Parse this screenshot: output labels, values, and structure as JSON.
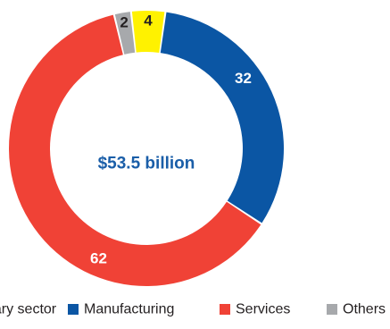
{
  "chart_data": {
    "type": "pie",
    "variant": "donut",
    "center_label": "$53.5 billion",
    "center_color": "#1a5ea8",
    "slices": [
      {
        "name": "Manufacturing",
        "value": 32,
        "label": "32",
        "color": "#0b56a4",
        "label_color": "#ffffff"
      },
      {
        "name": "Services",
        "value": 62,
        "label": "62",
        "color": "#f04236",
        "label_color": "#ffffff"
      },
      {
        "name": "Others",
        "value": 2,
        "label": "2",
        "color": "#a7a9ac",
        "label_color": "#231f20"
      },
      {
        "name": "Primary sector",
        "value": 4,
        "label": "4",
        "color": "#fff200",
        "label_color": "#231f20"
      }
    ],
    "legend": [
      {
        "text": "Primary sector",
        "color": "#fff200"
      },
      {
        "text": "Manufacturing",
        "color": "#0b56a4"
      },
      {
        "text": "Services",
        "color": "#f04236"
      },
      {
        "text": "Others",
        "color": "#a7a9ac"
      }
    ],
    "legend_position": "bottom"
  }
}
